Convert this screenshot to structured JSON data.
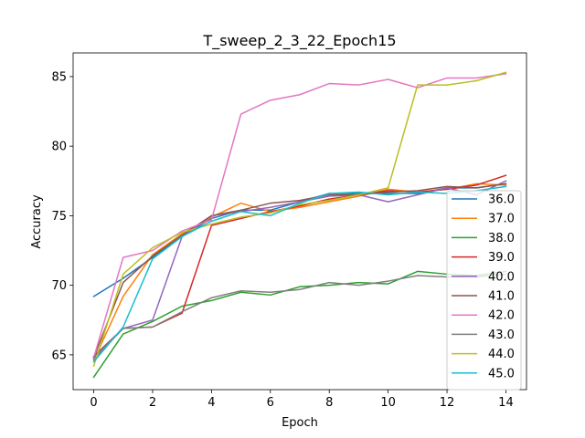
{
  "chart_data": {
    "type": "line",
    "title": "T_sweep_2_3_22_Epoch15",
    "xlabel": "Epoch",
    "ylabel": "Accuracy",
    "xlim": [
      -0.7,
      14.7
    ],
    "ylim": [
      62.5,
      86.7
    ],
    "xticks": [
      0,
      2,
      4,
      6,
      8,
      10,
      12,
      14
    ],
    "yticks": [
      65,
      70,
      75,
      80,
      85
    ],
    "grid": false,
    "legend_position": "lower right",
    "x": [
      0,
      1,
      2,
      3,
      4,
      5,
      6,
      7,
      8,
      9,
      10,
      11,
      12,
      13,
      14
    ],
    "series": [
      {
        "name": "36.0",
        "color": "#1f77b4",
        "values": [
          69.2,
          70.5,
          72.0,
          73.5,
          74.8,
          75.4,
          75.4,
          76.0,
          76.6,
          76.6,
          76.6,
          76.6,
          77.0,
          77.0,
          77.3
        ]
      },
      {
        "name": "37.0",
        "color": "#ff7f0e",
        "values": [
          64.6,
          69.2,
          72.2,
          73.7,
          74.9,
          75.9,
          75.3,
          75.6,
          76.0,
          76.4,
          76.9,
          76.7,
          76.9,
          77.3,
          77.2
        ]
      },
      {
        "name": "38.0",
        "color": "#2ca02c",
        "values": [
          63.4,
          66.5,
          67.4,
          68.5,
          68.9,
          69.5,
          69.3,
          69.9,
          70.0,
          70.2,
          70.1,
          71.0,
          70.8,
          70.7,
          71.0
        ]
      },
      {
        "name": "39.0",
        "color": "#d62728",
        "values": [
          64.9,
          66.9,
          67.0,
          68.0,
          74.3,
          74.8,
          75.3,
          75.7,
          76.2,
          76.5,
          76.8,
          76.7,
          76.9,
          77.2,
          77.9
        ]
      },
      {
        "name": "40.0",
        "color": "#9467bd",
        "values": [
          64.7,
          66.9,
          67.5,
          73.5,
          75.0,
          75.3,
          75.6,
          76.0,
          76.4,
          76.5,
          76.0,
          76.5,
          77.0,
          76.5,
          77.5
        ]
      },
      {
        "name": "41.0",
        "color": "#8c564b",
        "values": [
          64.8,
          70.2,
          72.1,
          73.6,
          75.0,
          75.4,
          75.9,
          76.1,
          76.5,
          76.5,
          76.7,
          76.8,
          77.1,
          77.0,
          77.3
        ]
      },
      {
        "name": "42.0",
        "color": "#e377c2",
        "values": [
          64.8,
          72.0,
          72.5,
          73.9,
          74.7,
          82.3,
          83.3,
          83.7,
          84.5,
          84.4,
          84.8,
          84.2,
          84.9,
          84.9,
          85.2
        ]
      },
      {
        "name": "43.0",
        "color": "#7f7f7f",
        "values": [
          64.8,
          66.9,
          67.0,
          68.1,
          69.1,
          69.6,
          69.5,
          69.7,
          70.2,
          70.0,
          70.3,
          70.7,
          70.6,
          70.6,
          70.8
        ]
      },
      {
        "name": "44.0",
        "color": "#bcbd22",
        "values": [
          64.2,
          70.8,
          72.7,
          73.8,
          74.4,
          74.9,
          75.2,
          75.8,
          76.1,
          76.5,
          77.0,
          84.4,
          84.4,
          84.7,
          85.3
        ]
      },
      {
        "name": "45.0",
        "color": "#17becf",
        "values": [
          64.5,
          67.0,
          71.9,
          73.5,
          74.6,
          75.3,
          75.0,
          75.9,
          76.6,
          76.7,
          76.5,
          76.7,
          76.6,
          76.8,
          77.1
        ]
      }
    ]
  }
}
